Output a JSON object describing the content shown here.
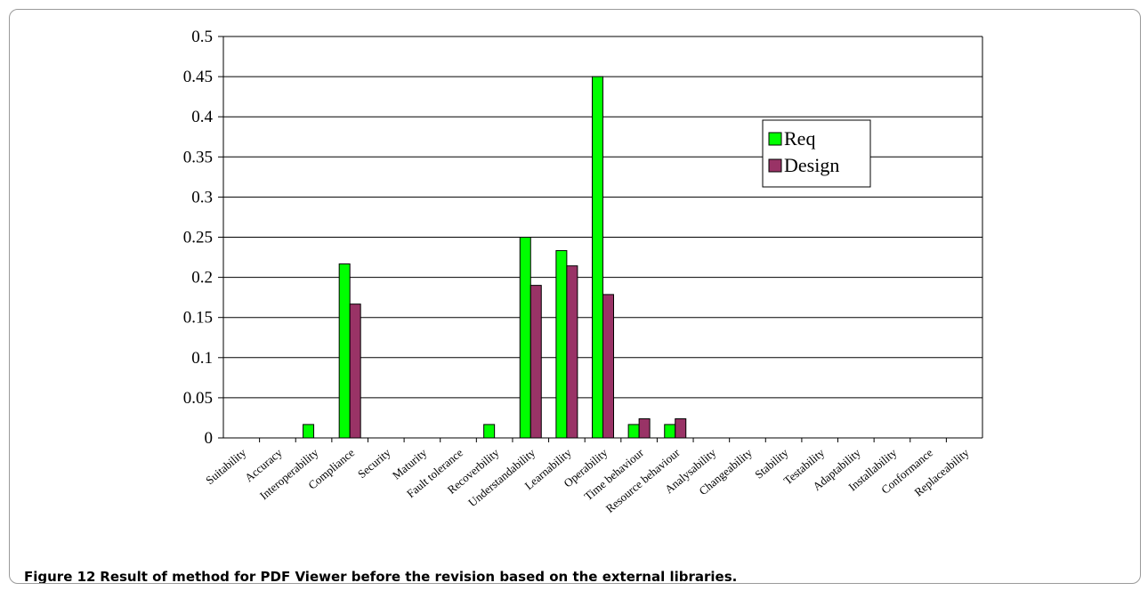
{
  "caption": {
    "label": "Figure 12",
    "text": "Result of method for PDF Viewer before the revision based on the external libraries."
  },
  "chart_data": {
    "type": "bar",
    "categories": [
      "Suitability",
      "Accuracy",
      "Interoperability",
      "Compliance",
      "Security",
      "Maturity",
      "Fault tolerance",
      "Recoverbility",
      "Understandability",
      "Learnability",
      "Operability",
      "Time behaviour",
      "Resource behaviour",
      "Analysability",
      "Changeability",
      "Stability",
      "Testability",
      "Adaptability",
      "Installability",
      "Conformance",
      "Replaceability"
    ],
    "series": [
      {
        "name": "Req",
        "color": "#00ff00",
        "values": [
          0,
          0,
          0.0167,
          0.2167,
          0,
          0,
          0,
          0.0167,
          0.25,
          0.2333,
          0.45,
          0.0167,
          0.0167,
          0,
          0,
          0,
          0,
          0,
          0,
          0,
          0
        ]
      },
      {
        "name": "Design",
        "color": "#993366",
        "values": [
          0,
          0,
          0,
          0.1667,
          0,
          0,
          0,
          0,
          0.19,
          0.2143,
          0.1786,
          0.0238,
          0.0238,
          0,
          0,
          0,
          0,
          0,
          0,
          0,
          0
        ]
      }
    ],
    "ylim": [
      0,
      0.5
    ],
    "yticks": [
      "0",
      "0.05",
      "0.1",
      "0.15",
      "0.2",
      "0.25",
      "0.3",
      "0.35",
      "0.4",
      "0.45",
      "0.5"
    ],
    "grid": true,
    "legend_position": "top-right"
  }
}
